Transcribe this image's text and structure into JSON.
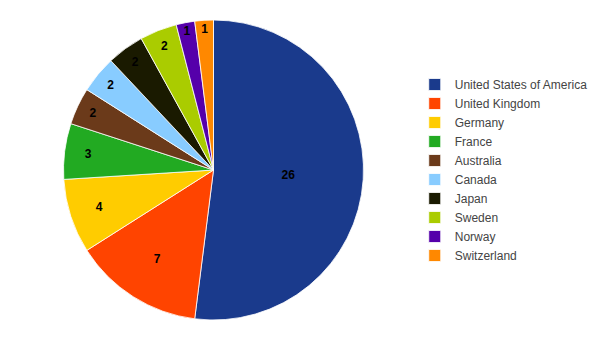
{
  "chart_data": {
    "type": "pie",
    "categories": [
      "United States of America",
      "United Kingdom",
      "Germany",
      "France",
      "Australia",
      "Canada",
      "Japan",
      "Sweden",
      "Norway",
      "Switzerland"
    ],
    "values": [
      26,
      7,
      4,
      3,
      2,
      2,
      2,
      2,
      1,
      1
    ],
    "colors": [
      "#1a3a8c",
      "#ff4400",
      "#ffcc00",
      "#22aa22",
      "#6b3a1a",
      "#88ccff",
      "#1a1a00",
      "#aacc00",
      "#5500aa",
      "#ff8800"
    ],
    "data_labels": true,
    "legend": "right"
  }
}
